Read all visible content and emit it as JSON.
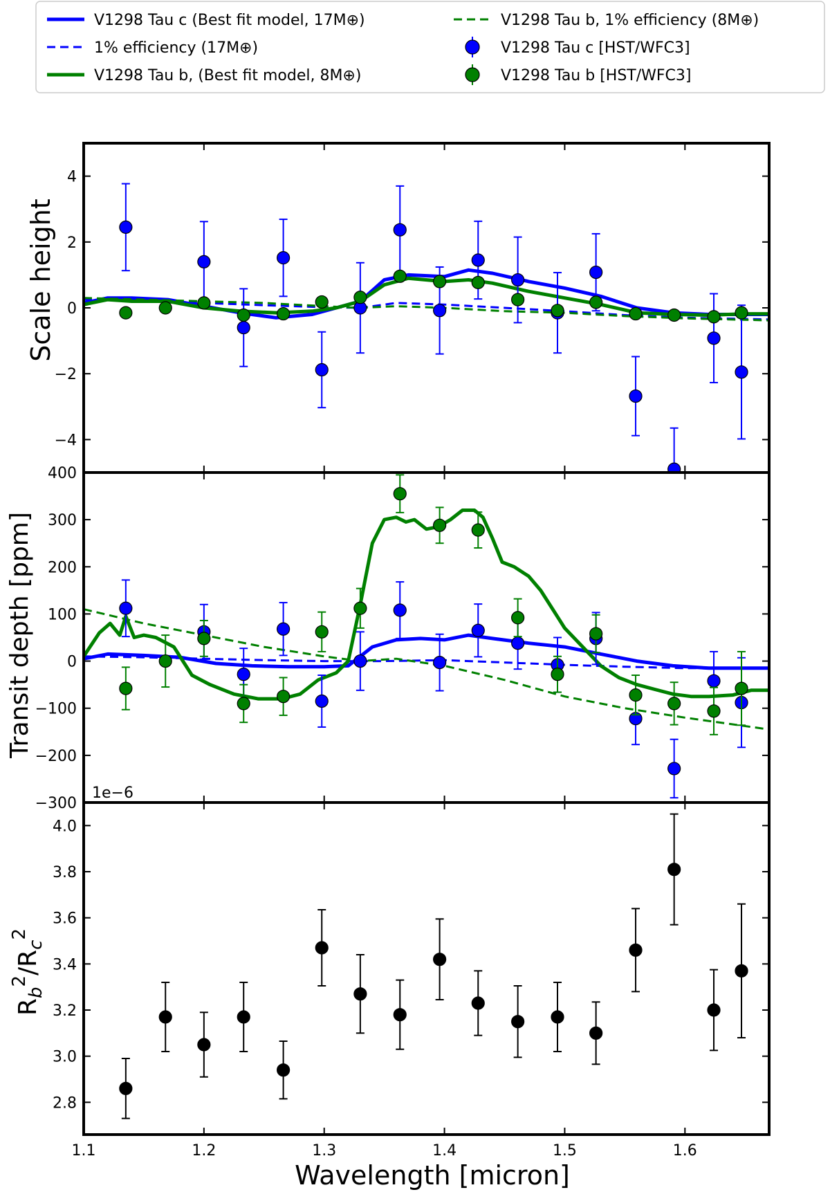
{
  "legend": {
    "entries": [
      {
        "label": "V1298 Tau c (Best fit model, 17M⊕)",
        "style": "solid",
        "color": "#0000ff"
      },
      {
        "label": "1% efficiency (17M⊕)",
        "style": "dashed",
        "color": "#0000ff"
      },
      {
        "label": "V1298 Tau b, (Best fit model, 8M⊕)",
        "style": "solid",
        "color": "#008000"
      },
      {
        "label": "V1298 Tau b, 1% efficiency (8M⊕)",
        "style": "dashed",
        "color": "#008000"
      },
      {
        "label": "V1298 Tau c [HST/WFC3]",
        "style": "marker",
        "color": "#0000ff"
      },
      {
        "label": "V1298 Tau b [HST/WFC3]",
        "style": "marker",
        "color": "#008000"
      }
    ]
  },
  "chart_data": [
    {
      "type": "line",
      "panel": "top",
      "ylabel": "Scale height",
      "xlim": [
        1.1,
        1.67
      ],
      "ylim": [
        -5,
        5
      ],
      "yticks": [
        -4,
        -2,
        0,
        2,
        4
      ],
      "ytick_labels": [
        "−4",
        "−2",
        "0",
        "2",
        "4"
      ],
      "lines": [
        {
          "name": "V1298 Tau c (Best fit model, 17M⊕)",
          "color": "#0000ff",
          "dash": false,
          "x": [
            1.1,
            1.12,
            1.14,
            1.17,
            1.2,
            1.23,
            1.26,
            1.29,
            1.31,
            1.33,
            1.35,
            1.37,
            1.4,
            1.42,
            1.44,
            1.47,
            1.5,
            1.53,
            1.56,
            1.59,
            1.62,
            1.65,
            1.67
          ],
          "y": [
            0.15,
            0.3,
            0.3,
            0.25,
            0.05,
            -0.15,
            -0.3,
            -0.2,
            0.0,
            0.2,
            0.85,
            1.0,
            0.95,
            1.15,
            1.05,
            0.8,
            0.6,
            0.35,
            0.0,
            -0.15,
            -0.2,
            -0.2,
            -0.2
          ]
        },
        {
          "name": "1% efficiency (17M⊕)",
          "color": "#0000ff",
          "dash": true,
          "x": [
            1.1,
            1.15,
            1.2,
            1.25,
            1.3,
            1.33,
            1.36,
            1.4,
            1.45,
            1.5,
            1.55,
            1.6,
            1.67
          ],
          "y": [
            0.25,
            0.2,
            0.15,
            0.08,
            0.02,
            0.0,
            0.15,
            0.1,
            0.0,
            -0.1,
            -0.22,
            -0.3,
            -0.35
          ]
        },
        {
          "name": "V1298 Tau b, (Best fit model, 8M⊕)",
          "color": "#008000",
          "dash": false,
          "x": [
            1.1,
            1.12,
            1.14,
            1.17,
            1.2,
            1.23,
            1.26,
            1.29,
            1.31,
            1.33,
            1.35,
            1.37,
            1.4,
            1.42,
            1.44,
            1.47,
            1.5,
            1.53,
            1.56,
            1.59,
            1.62,
            1.65,
            1.67
          ],
          "y": [
            0.1,
            0.25,
            0.2,
            0.2,
            0.0,
            -0.1,
            -0.15,
            -0.1,
            0.0,
            0.2,
            0.7,
            0.9,
            0.8,
            0.85,
            0.75,
            0.5,
            0.3,
            0.1,
            -0.15,
            -0.2,
            -0.22,
            -0.18,
            -0.18
          ]
        },
        {
          "name": "V1298 Tau b, 1% efficiency (8M⊕)",
          "color": "#008000",
          "dash": true,
          "x": [
            1.1,
            1.15,
            1.2,
            1.25,
            1.3,
            1.33,
            1.36,
            1.4,
            1.45,
            1.5,
            1.55,
            1.6,
            1.67
          ],
          "y": [
            0.3,
            0.25,
            0.2,
            0.15,
            0.05,
            0.0,
            0.05,
            0.0,
            -0.1,
            -0.15,
            -0.25,
            -0.32,
            -0.38
          ]
        }
      ],
      "points": [
        {
          "name": "V1298 Tau c [HST/WFC3]",
          "color": "#0000ff",
          "x": [
            1.135,
            1.168,
            1.2,
            1.233,
            1.266,
            1.298,
            1.33,
            1.363,
            1.396,
            1.428,
            1.461,
            1.494,
            1.526,
            1.559,
            1.591,
            1.624,
            1.647
          ],
          "y": [
            2.45,
            null,
            1.4,
            -0.6,
            1.52,
            -1.88,
            0.0,
            2.37,
            -0.08,
            1.45,
            0.85,
            -0.15,
            1.08,
            -2.68,
            -4.9,
            -0.92,
            -1.95
          ],
          "err": [
            1.32,
            null,
            1.22,
            1.18,
            1.17,
            1.15,
            1.37,
            1.33,
            1.32,
            1.18,
            1.3,
            1.22,
            1.17,
            1.2,
            1.25,
            1.35,
            2.03
          ]
        },
        {
          "name": "V1298 Tau b [HST/WFC3]",
          "color": "#008000",
          "x": [
            1.135,
            1.168,
            1.2,
            1.233,
            1.266,
            1.298,
            1.33,
            1.363,
            1.396,
            1.428,
            1.461,
            1.494,
            1.526,
            1.559,
            1.591,
            1.624,
            1.647
          ],
          "y": [
            -0.15,
            0.0,
            0.15,
            -0.22,
            -0.18,
            0.18,
            0.32,
            0.96,
            0.8,
            0.77,
            0.25,
            -0.08,
            0.17,
            -0.18,
            -0.22,
            -0.27,
            -0.15
          ],
          "err": [
            0.12,
            0.12,
            0.12,
            0.12,
            0.12,
            0.12,
            0.12,
            0.12,
            0.12,
            0.12,
            0.12,
            0.12,
            0.12,
            0.12,
            0.12,
            0.12,
            0.12
          ]
        }
      ]
    },
    {
      "type": "line",
      "panel": "middle",
      "ylabel": "Transit depth [ppm]",
      "offset_text": "1e−6",
      "xlim": [
        1.1,
        1.67
      ],
      "ylim": [
        -300,
        400
      ],
      "yticks": [
        -300,
        -200,
        -100,
        0,
        100,
        200,
        300,
        400
      ],
      "ytick_labels": [
        "−300",
        "−200",
        "−100",
        "0",
        "100",
        "200",
        "300",
        "400"
      ],
      "lines": [
        {
          "name": "V1298 Tau c (Best fit model, 17M⊕)",
          "color": "#0000ff",
          "dash": false,
          "x": [
            1.1,
            1.12,
            1.15,
            1.18,
            1.21,
            1.24,
            1.27,
            1.3,
            1.32,
            1.34,
            1.36,
            1.38,
            1.4,
            1.42,
            1.44,
            1.47,
            1.5,
            1.53,
            1.56,
            1.59,
            1.62,
            1.65,
            1.67
          ],
          "y": [
            5,
            15,
            12,
            8,
            -5,
            -10,
            -12,
            -12,
            -10,
            30,
            45,
            48,
            45,
            55,
            48,
            38,
            30,
            15,
            0,
            -10,
            -15,
            -15,
            -15
          ]
        },
        {
          "name": "1% efficiency (17M⊕)",
          "color": "#0000ff",
          "dash": true,
          "x": [
            1.1,
            1.15,
            1.2,
            1.25,
            1.3,
            1.35,
            1.4,
            1.45,
            1.5,
            1.55,
            1.6,
            1.67
          ],
          "y": [
            10,
            8,
            5,
            2,
            0,
            0,
            2,
            -3,
            -8,
            -12,
            -15,
            -15
          ]
        },
        {
          "name": "V1298 Tau b, (Best fit model, 8M⊕)",
          "color": "#008000",
          "dash": false,
          "x": [
            1.1,
            1.113,
            1.122,
            1.13,
            1.135,
            1.142,
            1.15,
            1.16,
            1.175,
            1.19,
            1.205,
            1.225,
            1.245,
            1.265,
            1.28,
            1.295,
            1.31,
            1.32,
            1.33,
            1.34,
            1.35,
            1.36,
            1.368,
            1.375,
            1.385,
            1.395,
            1.405,
            1.415,
            1.425,
            1.432,
            1.44,
            1.448,
            1.458,
            1.47,
            1.48,
            1.49,
            1.5,
            1.515,
            1.53,
            1.545,
            1.56,
            1.575,
            1.59,
            1.605,
            1.62,
            1.64,
            1.655,
            1.67
          ],
          "y": [
            10,
            60,
            80,
            55,
            95,
            50,
            55,
            50,
            30,
            -30,
            -50,
            -70,
            -80,
            -80,
            -70,
            -40,
            -25,
            0,
            120,
            250,
            300,
            305,
            295,
            300,
            280,
            285,
            300,
            320,
            320,
            305,
            260,
            210,
            200,
            180,
            150,
            110,
            70,
            30,
            -10,
            -35,
            -50,
            -60,
            -70,
            -75,
            -75,
            -72,
            -62,
            -62
          ]
        },
        {
          "name": "V1298 Tau b, 1% efficiency (8M⊕)",
          "color": "#008000",
          "dash": true,
          "x": [
            1.1,
            1.15,
            1.2,
            1.25,
            1.3,
            1.33,
            1.36,
            1.4,
            1.45,
            1.5,
            1.55,
            1.6,
            1.67
          ],
          "y": [
            110,
            80,
            55,
            30,
            10,
            0,
            5,
            -10,
            -40,
            -75,
            -100,
            -120,
            -145
          ]
        }
      ],
      "points": [
        {
          "name": "V1298 Tau c [HST/WFC3]",
          "color": "#0000ff",
          "x": [
            1.135,
            1.168,
            1.2,
            1.233,
            1.266,
            1.298,
            1.33,
            1.363,
            1.396,
            1.428,
            1.461,
            1.494,
            1.526,
            1.559,
            1.591,
            1.624,
            1.647
          ],
          "y": [
            112,
            null,
            62,
            -28,
            68,
            -85,
            0,
            108,
            -3,
            65,
            38,
            -8,
            48,
            -122,
            -228,
            -42,
            -88
          ],
          "err": [
            60,
            null,
            58,
            55,
            56,
            55,
            62,
            60,
            60,
            56,
            55,
            58,
            55,
            55,
            62,
            62,
            95
          ]
        },
        {
          "name": "V1298 Tau b [HST/WFC3]",
          "color": "#008000",
          "x": [
            1.135,
            1.168,
            1.2,
            1.233,
            1.266,
            1.298,
            1.33,
            1.363,
            1.396,
            1.428,
            1.461,
            1.494,
            1.526,
            1.559,
            1.591,
            1.624,
            1.647
          ],
          "y": [
            -58,
            0,
            48,
            -90,
            -75,
            62,
            112,
            355,
            288,
            278,
            92,
            -28,
            58,
            -72,
            -90,
            -106,
            -58
          ],
          "err": [
            45,
            55,
            38,
            40,
            40,
            42,
            42,
            40,
            38,
            38,
            40,
            38,
            40,
            42,
            45,
            50,
            78
          ]
        }
      ]
    },
    {
      "type": "scatter",
      "panel": "bottom",
      "ylabel": "Rb²/Rc²",
      "xlabel": "Wavelength [micron]",
      "xlim": [
        1.1,
        1.67
      ],
      "ylim": [
        2.66,
        4.1
      ],
      "yticks": [
        2.8,
        3.0,
        3.2,
        3.4,
        3.6,
        3.8,
        4.0
      ],
      "ytick_labels": [
        "2.8",
        "3.0",
        "3.2",
        "3.4",
        "3.6",
        "3.8",
        "4.0"
      ],
      "xticks": [
        1.1,
        1.2,
        1.3,
        1.4,
        1.5,
        1.6
      ],
      "xtick_labels": [
        "1.1",
        "1.2",
        "1.3",
        "1.4",
        "1.5",
        "1.6"
      ],
      "points": [
        {
          "color": "#000000",
          "x": [
            1.135,
            1.168,
            1.2,
            1.233,
            1.266,
            1.298,
            1.33,
            1.363,
            1.396,
            1.428,
            1.461,
            1.494,
            1.526,
            1.559,
            1.591,
            1.624,
            1.647
          ],
          "y": [
            2.86,
            3.17,
            3.05,
            3.17,
            2.94,
            3.47,
            3.27,
            3.18,
            3.42,
            3.23,
            3.15,
            3.17,
            3.1,
            3.46,
            3.81,
            3.2,
            3.37
          ],
          "err": [
            0.13,
            0.15,
            0.14,
            0.15,
            0.125,
            0.165,
            0.17,
            0.15,
            0.175,
            0.14,
            0.155,
            0.15,
            0.135,
            0.18,
            0.24,
            0.175,
            0.29
          ]
        }
      ]
    }
  ]
}
